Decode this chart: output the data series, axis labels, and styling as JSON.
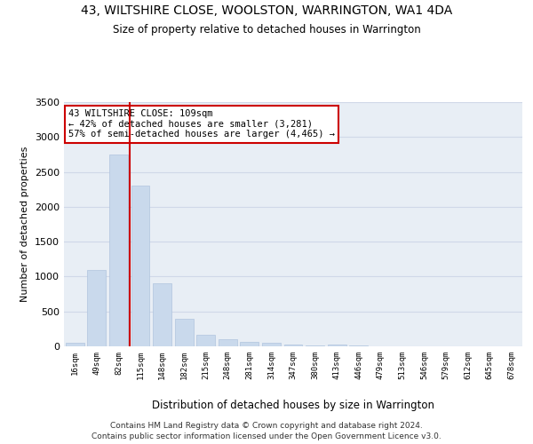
{
  "title": "43, WILTSHIRE CLOSE, WOOLSTON, WARRINGTON, WA1 4DA",
  "subtitle": "Size of property relative to detached houses in Warrington",
  "xlabel": "Distribution of detached houses by size in Warrington",
  "ylabel": "Number of detached properties",
  "categories": [
    "16sqm",
    "49sqm",
    "82sqm",
    "115sqm",
    "148sqm",
    "182sqm",
    "215sqm",
    "248sqm",
    "281sqm",
    "314sqm",
    "347sqm",
    "380sqm",
    "413sqm",
    "446sqm",
    "479sqm",
    "513sqm",
    "546sqm",
    "579sqm",
    "612sqm",
    "645sqm",
    "678sqm"
  ],
  "values": [
    50,
    1100,
    2750,
    2300,
    900,
    400,
    165,
    100,
    70,
    50,
    30,
    15,
    30,
    10,
    5,
    3,
    2,
    2,
    1,
    1,
    1
  ],
  "bar_color": "#c9d9ec",
  "bar_edge_color": "#b0c4de",
  "grid_color": "#d0d8e8",
  "background_color": "#e8eef5",
  "vline_x_index": 3,
  "vline_color": "#cc0000",
  "annotation_text": "43 WILTSHIRE CLOSE: 109sqm\n← 42% of detached houses are smaller (3,281)\n57% of semi-detached houses are larger (4,465) →",
  "annotation_box_color": "#ffffff",
  "annotation_box_edge": "#cc0000",
  "ylim": [
    0,
    3500
  ],
  "yticks": [
    0,
    500,
    1000,
    1500,
    2000,
    2500,
    3000,
    3500
  ],
  "footer_line1": "Contains HM Land Registry data © Crown copyright and database right 2024.",
  "footer_line2": "Contains public sector information licensed under the Open Government Licence v3.0."
}
